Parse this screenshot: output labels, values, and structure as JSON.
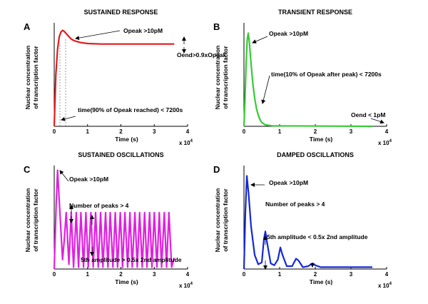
{
  "chart_data": [
    {
      "type": "line",
      "panel_label": "A",
      "title": "SUSTAINED RESPONSE",
      "xlabel": "Time (s)",
      "ylabel": [
        "Nuclear concentration",
        "of transcription factor"
      ],
      "x_ticks": [
        "0",
        "1",
        "2",
        "3",
        "4"
      ],
      "x_exponent": "x 10",
      "x_exponent_power": "4",
      "xlim": [
        0,
        40000
      ],
      "ylim": [
        0,
        1.1
      ],
      "color": "#e41a1c",
      "series": [
        {
          "x": [
            0,
            500,
            1000,
            1500,
            2000,
            2500,
            3000,
            4000,
            5000,
            6000,
            7000,
            8000,
            10000,
            14000,
            20000,
            26000,
            30000,
            36000
          ],
          "y": [
            0,
            0.55,
            0.82,
            0.95,
            1.0,
            1.02,
            1.01,
            0.97,
            0.93,
            0.91,
            0.9,
            0.89,
            0.88,
            0.875,
            0.875,
            0.875,
            0.875,
            0.875
          ]
        }
      ],
      "annotations": [
        "Opeak >10pM",
        "Oend>0.9xOpeak",
        "time(90% of Opeak reached) < 7200s"
      ]
    },
    {
      "type": "line",
      "panel_label": "B",
      "title": "TRANSIENT RESPONSE",
      "xlabel": "Time (s)",
      "ylabel": [
        "Nuclear concentration",
        "of transcription factor"
      ],
      "x_ticks": [
        "0",
        "1",
        "2",
        "3",
        "4"
      ],
      "x_exponent": "x 10",
      "x_exponent_power": "4",
      "xlim": [
        0,
        40000
      ],
      "ylim": [
        0,
        1.1
      ],
      "color": "#33cc33",
      "series": [
        {
          "x": [
            0,
            300,
            600,
            900,
            1200,
            1500,
            2000,
            2500,
            3000,
            3500,
            4000,
            4500,
            5000,
            6000,
            8000,
            36000
          ],
          "y": [
            0,
            0.3,
            0.65,
            0.92,
            0.99,
            0.9,
            0.66,
            0.45,
            0.3,
            0.19,
            0.12,
            0.07,
            0.04,
            0.015,
            0.005,
            0.0
          ]
        }
      ],
      "annotations": [
        "Opeak >10pM",
        "time(10% of Opeak after peak) < 7200s",
        "Oend < 1pM"
      ]
    },
    {
      "type": "line",
      "panel_label": "C",
      "title": "SUSTAINED OSCILLATIONS",
      "xlabel": "Time (s)",
      "ylabel": [
        "Nuclear concentration",
        "of transcription factor"
      ],
      "x_ticks": [
        "0",
        "1",
        "2",
        "3",
        "4"
      ],
      "x_exponent": "x 10",
      "x_exponent_power": "4",
      "xlim": [
        0,
        40000
      ],
      "ylim": [
        0,
        1.1
      ],
      "color": "#e020e0",
      "series": [
        {
          "x": [
            0,
            600,
            1000,
            1400,
            2500,
            3000,
            3600,
            4400,
            5100,
            5800,
            6600,
            7300,
            8000,
            8800,
            9500,
            10200,
            11000,
            11700,
            12400,
            13200,
            13900,
            14600,
            15400,
            16100,
            16800,
            17600,
            18300,
            19000,
            19800,
            20500,
            21200,
            22000,
            22700,
            23400,
            24200,
            24900,
            25600,
            26400,
            27100,
            27800,
            28600,
            29300,
            30000,
            30800,
            31500,
            32200,
            33000,
            33700,
            34400,
            35200,
            36000
          ],
          "y": [
            0,
            0.7,
            1.05,
            0.8,
            0.1,
            0.3,
            0.6,
            0.05,
            0.6,
            0.02,
            0.6,
            0.02,
            0.6,
            0.02,
            0.6,
            0.02,
            0.6,
            0.02,
            0.6,
            0.02,
            0.6,
            0.02,
            0.6,
            0.02,
            0.6,
            0.02,
            0.6,
            0.02,
            0.6,
            0.02,
            0.6,
            0.02,
            0.6,
            0.02,
            0.6,
            0.02,
            0.6,
            0.02,
            0.6,
            0.02,
            0.6,
            0.02,
            0.6,
            0.02,
            0.6,
            0.02,
            0.6,
            0.02,
            0.6,
            0.02,
            0.12
          ]
        }
      ],
      "annotations": [
        "Opeak >10pM",
        "Number of peaks > 4",
        "5th amplitude > 0.5x 2nd amplitude"
      ]
    },
    {
      "type": "line",
      "panel_label": "D",
      "title": "DAMPED OSCILLATIONS",
      "xlabel": "Time (s)",
      "ylabel": [
        "Nuclear concentration",
        "of transcription factor"
      ],
      "x_ticks": [
        "0",
        "1",
        "2",
        "3",
        "4"
      ],
      "x_exponent": "x 10",
      "x_exponent_power": "4",
      "xlim": [
        0,
        40000
      ],
      "ylim": [
        0,
        1.1
      ],
      "color": "#1428d8",
      "series": [
        {
          "x": [
            0,
            400,
            800,
            1300,
            2000,
            3000,
            4000,
            5000,
            5600,
            6000,
            6400,
            7500,
            8500,
            9500,
            10200,
            10800,
            12000,
            13500,
            14600,
            15300,
            16500,
            18000,
            19200,
            20000,
            21500,
            23000,
            25000,
            28000,
            32000,
            36000
          ],
          "y": [
            0,
            0.6,
            0.99,
            0.8,
            0.45,
            0.15,
            0.05,
            0.07,
            0.32,
            0.4,
            0.3,
            0.06,
            0.04,
            0.1,
            0.23,
            0.15,
            0.03,
            0.03,
            0.11,
            0.09,
            0.02,
            0.03,
            0.06,
            0.04,
            0.02,
            0.02,
            0.02,
            0.02,
            0.02,
            0.02
          ]
        }
      ],
      "annotations": [
        "Opeak >10pM",
        "Number of peaks > 4",
        "5th amplitude < 0.5x 2nd amplitude"
      ]
    }
  ]
}
